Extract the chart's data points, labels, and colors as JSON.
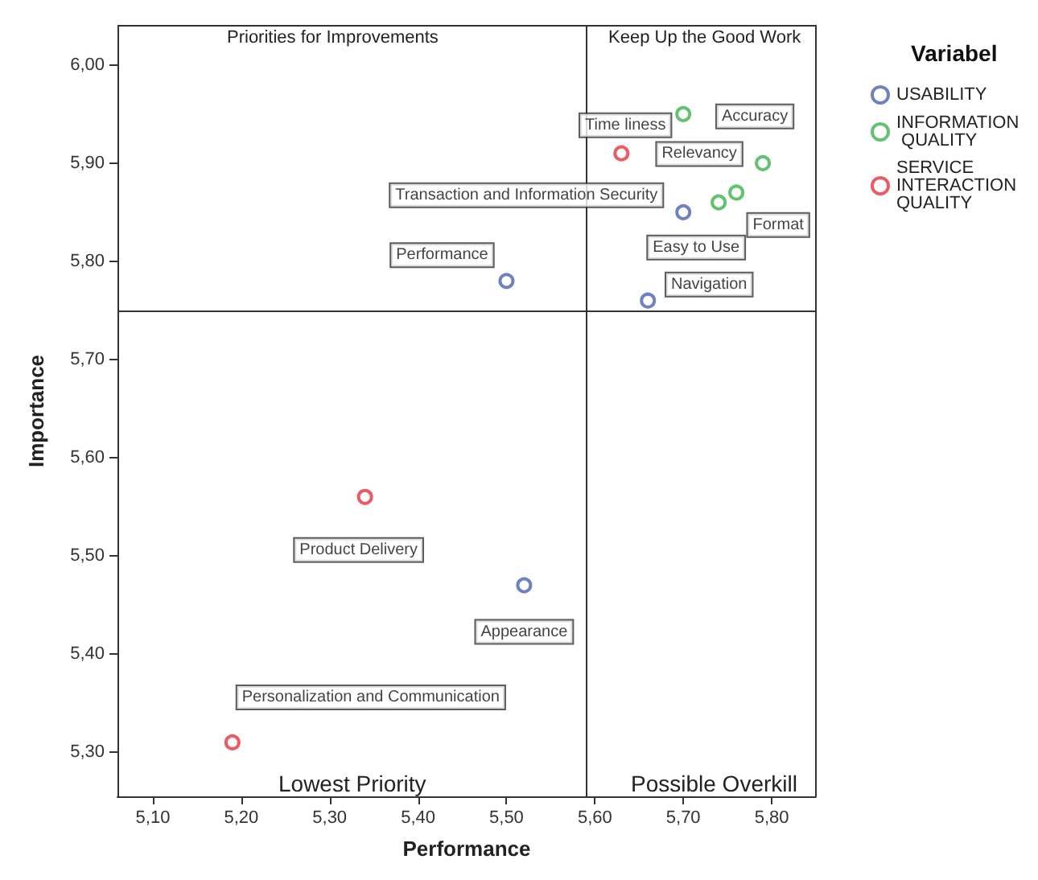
{
  "chart_data": {
    "type": "scatter",
    "xlabel": "Performance",
    "ylabel": "Importance",
    "legend_title": "Variabel",
    "legend": "top right",
    "marker": "circle",
    "grid": false,
    "xlim": [
      5.06,
      5.85
    ],
    "ylim": [
      5.255,
      6.04
    ],
    "xticks": [
      {
        "value": 5.1,
        "label": "5,10"
      },
      {
        "value": 5.2,
        "label": "5,20"
      },
      {
        "value": 5.3,
        "label": "5,30"
      },
      {
        "value": 5.4,
        "label": "5,40"
      },
      {
        "value": 5.5,
        "label": "5,50"
      },
      {
        "value": 5.6,
        "label": "5,60"
      },
      {
        "value": 5.7,
        "label": "5,70"
      },
      {
        "value": 5.8,
        "label": "5,80"
      }
    ],
    "yticks": [
      {
        "value": 5.3,
        "label": "5,30"
      },
      {
        "value": 5.4,
        "label": "5,40"
      },
      {
        "value": 5.5,
        "label": "5,50"
      },
      {
        "value": 5.6,
        "label": "5,60"
      },
      {
        "value": 5.7,
        "label": "5,70"
      },
      {
        "value": 5.8,
        "label": "5,80"
      },
      {
        "value": 5.9,
        "label": "5,90"
      },
      {
        "value": 6.0,
        "label": "6,00"
      }
    ],
    "ref_lines": [
      {
        "axis": "x",
        "value": 5.59,
        "color": "#333333"
      },
      {
        "axis": "y",
        "value": 5.75,
        "color": "#333333"
      }
    ],
    "series": [
      {
        "name": "USABILITY",
        "color": "#4a62b0",
        "x": [
          5.5,
          5.7,
          5.66,
          5.52
        ],
        "values": [
          5.78,
          5.85,
          5.76,
          5.47
        ]
      },
      {
        "name": "INFORMATION QUALITY",
        "color": "#3cb34a",
        "x": [
          5.7,
          5.79,
          5.76,
          5.74
        ],
        "values": [
          5.95,
          5.9,
          5.87,
          5.86
        ]
      },
      {
        "name": "SERVICE INTERACTION QUALITY",
        "color": "#e8313a",
        "x": [
          5.63,
          5.34,
          5.19
        ],
        "values": [
          5.91,
          5.56,
          5.31
        ]
      }
    ],
    "annotations": [
      "Priorities for Improvements",
      "Keep Up the Good Work",
      "Lowest Priority",
      "Possible Overkill",
      {
        "text": "Performance",
        "x": 5.5,
        "y": 5.78
      },
      {
        "text": "Easy to Use",
        "x": 5.7,
        "y": 5.85
      },
      {
        "text": "Navigation",
        "x": 5.66,
        "y": 5.76
      },
      {
        "text": "Appearance",
        "x": 5.52,
        "y": 5.47
      },
      {
        "text": "Time liness",
        "x": 5.7,
        "y": 5.95
      },
      {
        "text": "Accuracy",
        "x": 5.79,
        "y": 5.9
      },
      {
        "text": "Relevancy",
        "x": 5.76,
        "y": 5.87
      },
      {
        "text": "Format",
        "x": 5.74,
        "y": 5.86
      },
      {
        "text": "Transaction and Information Security",
        "x": 5.63,
        "y": 5.91
      },
      {
        "text": "Product Delivery",
        "x": 5.34,
        "y": 5.56
      },
      {
        "text": "Personalization and Communication",
        "x": 5.19,
        "y": 5.31
      }
    ]
  }
}
